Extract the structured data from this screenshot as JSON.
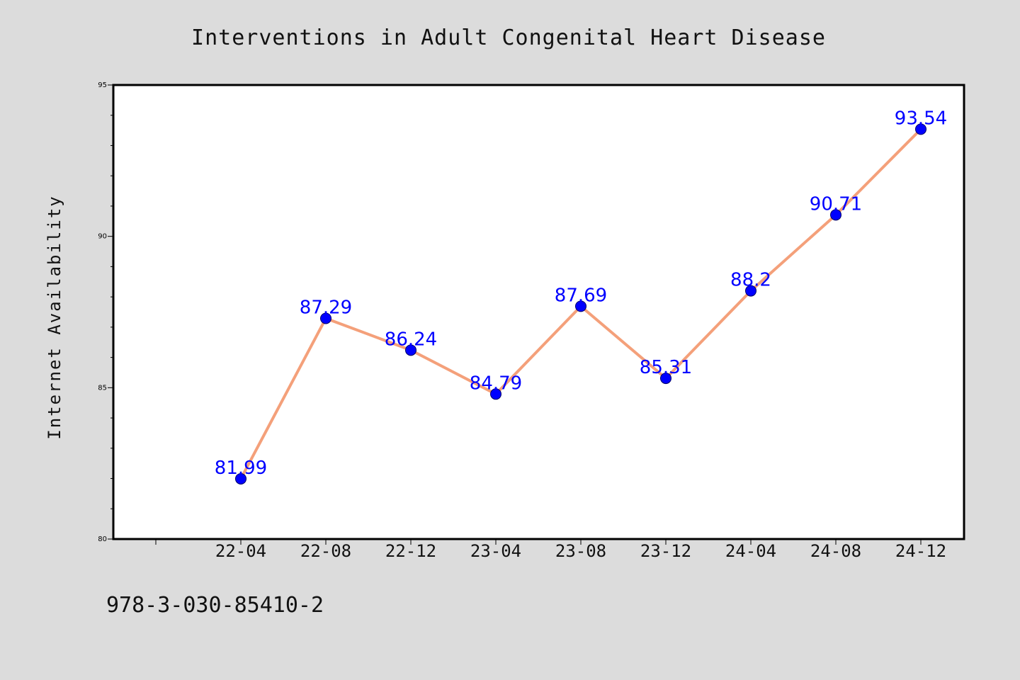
{
  "figure": {
    "background": "#dcdcdc",
    "footer_text": "978-3-030-85410-2"
  },
  "chart_data": {
    "type": "line",
    "title": "Interventions in Adult Congenital Heart Disease",
    "xlabel": "",
    "ylabel": "Internet Availability",
    "categories": [
      "22-04",
      "22-08",
      "22-12",
      "23-04",
      "23-08",
      "23-12",
      "24-04",
      "24-08",
      "24-12"
    ],
    "series": [
      {
        "values": [
          81.99,
          87.29,
          86.24,
          84.79,
          87.69,
          85.31,
          88.2,
          90.71,
          93.54
        ],
        "data_labels": [
          "81.99",
          "87.29",
          "86.24",
          "84.79",
          "87.69",
          "85.31",
          "88.2",
          "90.71",
          "93.54"
        ],
        "line_color": "#f4a07a",
        "marker_color": "#0000ff",
        "label_color": "#0000ff"
      }
    ],
    "ylim": [
      80,
      95
    ],
    "yticks": [
      80,
      85,
      90,
      95
    ],
    "ytick_labels": [
      "80",
      "85",
      "90",
      "95"
    ],
    "grid": false,
    "plot_background": "#ffffff"
  }
}
